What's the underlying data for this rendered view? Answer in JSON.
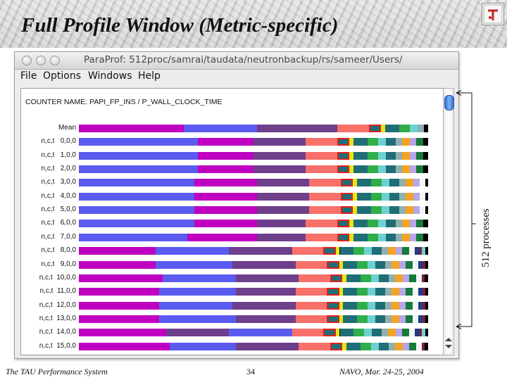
{
  "slide": {
    "title": "Full Profile Window (Metric-specific)",
    "side_label": "512 processes",
    "footer_left": "The TAU Performance System",
    "footer_page": "34",
    "footer_right": "NAVO, Mar. 24-25, 2004"
  },
  "window": {
    "title": "ParaProf: 512proc/samrai/taudata/neutronbackup/rs/sameer/Users/",
    "menu": [
      "File",
      "Options",
      "Windows",
      "Help"
    ]
  },
  "profile": {
    "counter_label": "COUNTER NAME: PAPI_FP_INS / P_WALL_CLOCK_TIME",
    "palette": {
      "magenta": "#bf00c0",
      "blue": "#5b5bf0",
      "purple": "#6e3f8a",
      "salmon": "#f8706a",
      "teal": "#2d8b99",
      "dteal": "#1f6e77",
      "yellow": "#e6e616",
      "green": "#2fae4a",
      "dgreen": "#167a3a",
      "cyan": "#6fd1cf",
      "gray": "#8fb0ae",
      "orange": "#f4a325",
      "lavender": "#b8a6e8",
      "navy": "#1e3c8c",
      "maroon": "#7a1f3f",
      "white": "#f4f4f4",
      "pink": "#e06bd0",
      "dark": "#111111",
      "red_outline": "#e31e1e"
    },
    "rows": [
      {
        "label": "Mean",
        "order": [
          "magenta",
          "blue",
          "purple"
        ],
        "fractions": [
          0.3,
          0.21,
          0.23
        ]
      },
      {
        "label": "n,c,t   0,0,0",
        "order": [
          "blue",
          "magenta",
          "purple"
        ],
        "fractions": [
          0.34,
          0.16,
          0.15
        ]
      },
      {
        "label": "n,c,t   1,0,0",
        "order": [
          "blue",
          "magenta",
          "purple"
        ],
        "fractions": [
          0.34,
          0.16,
          0.15
        ]
      },
      {
        "label": "n,c,t   2,0,0",
        "order": [
          "blue",
          "magenta",
          "purple"
        ],
        "fractions": [
          0.34,
          0.16,
          0.15
        ]
      },
      {
        "label": "n,c,t   3,0,0",
        "order": [
          "blue",
          "magenta",
          "purple"
        ],
        "fractions": [
          0.33,
          0.18,
          0.15
        ]
      },
      {
        "label": "n,c,t   4,0,0",
        "order": [
          "blue",
          "magenta",
          "purple"
        ],
        "fractions": [
          0.33,
          0.18,
          0.15
        ]
      },
      {
        "label": "n,c,t   5,0,0",
        "order": [
          "blue",
          "magenta",
          "purple"
        ],
        "fractions": [
          0.33,
          0.18,
          0.15
        ]
      },
      {
        "label": "n,c,t   6,0,0",
        "order": [
          "blue",
          "magenta",
          "purple"
        ],
        "fractions": [
          0.33,
          0.18,
          0.14
        ]
      },
      {
        "label": "n,c,t   7,0,0",
        "order": [
          "blue",
          "magenta",
          "purple"
        ],
        "fractions": [
          0.31,
          0.2,
          0.14
        ]
      },
      {
        "label": "n,c,t   8,0,0",
        "order": [
          "magenta",
          "blue",
          "purple"
        ],
        "fractions": [
          0.22,
          0.21,
          0.18
        ]
      },
      {
        "label": "n,c,t   9,0,0",
        "order": [
          "magenta",
          "blue",
          "purple"
        ],
        "fractions": [
          0.22,
          0.22,
          0.18
        ]
      },
      {
        "label": "n,c,t  10,0,0",
        "order": [
          "magenta",
          "blue",
          "purple"
        ],
        "fractions": [
          0.24,
          0.21,
          0.18
        ]
      },
      {
        "label": "n,c,t  11,0,0",
        "order": [
          "magenta",
          "blue",
          "purple"
        ],
        "fractions": [
          0.23,
          0.22,
          0.17
        ]
      },
      {
        "label": "n,c,t  12,0,0",
        "order": [
          "magenta",
          "blue",
          "purple"
        ],
        "fractions": [
          0.23,
          0.21,
          0.18
        ]
      },
      {
        "label": "n,c,t  13,0,0",
        "order": [
          "magenta",
          "blue",
          "purple"
        ],
        "fractions": [
          0.23,
          0.22,
          0.17
        ]
      },
      {
        "label": "n,c,t  14,0,0",
        "order": [
          "magenta",
          "purple",
          "blue"
        ],
        "fractions": [
          0.25,
          0.18,
          0.18
        ]
      },
      {
        "label": "n,c,t  15,0,0",
        "order": [
          "magenta",
          "blue",
          "purple"
        ],
        "fractions": [
          0.26,
          0.19,
          0.18
        ]
      }
    ],
    "tail_colors": [
      "teal",
      "dteal",
      "yellow",
      "dteal",
      "green",
      "cyan",
      "dteal",
      "gray",
      "orange",
      "lavender",
      "dgreen",
      "white",
      "navy",
      "maroon",
      "white",
      "cyan",
      "pink",
      "dark"
    ]
  },
  "icons": {
    "close": "close-icon",
    "minimize": "minimize-icon",
    "zoom": "zoom-icon",
    "scroll_up": "scroll-up-icon",
    "scroll_down": "scroll-down-icon",
    "logo": "tau-logo-icon"
  }
}
